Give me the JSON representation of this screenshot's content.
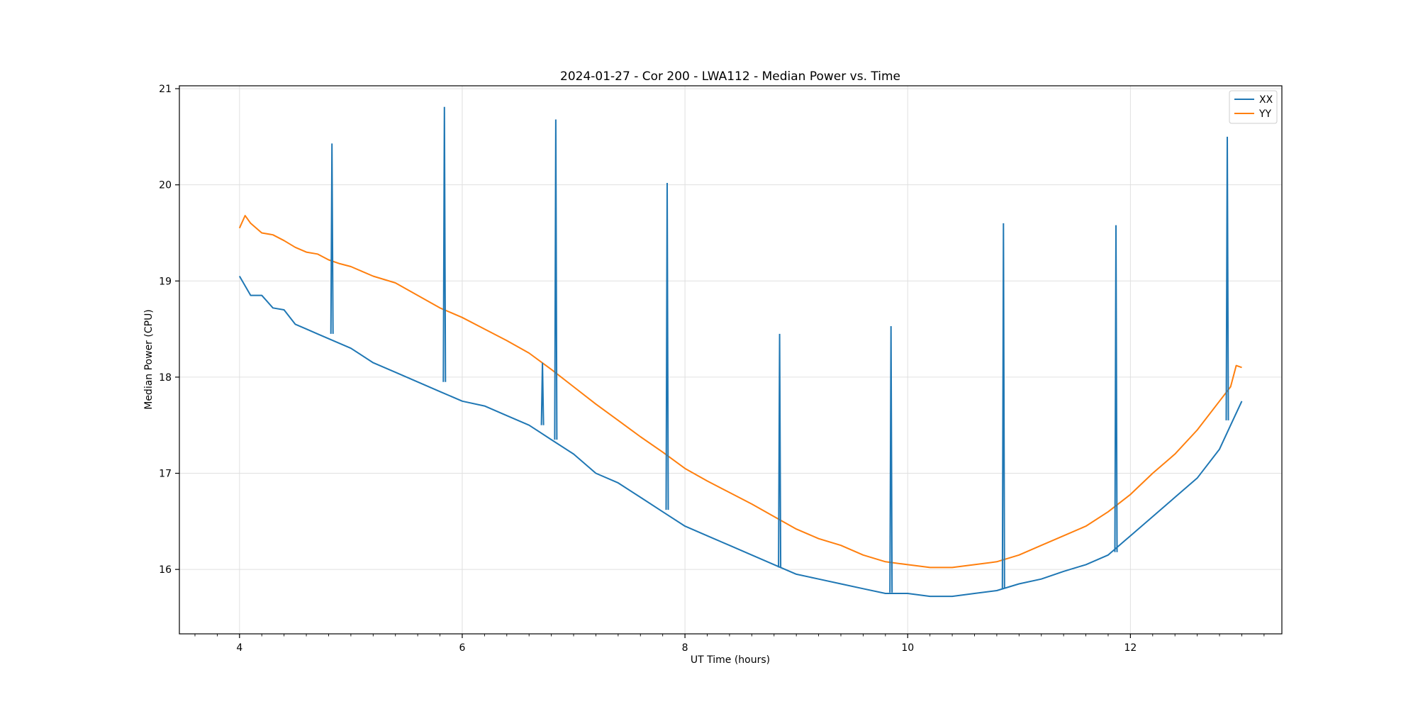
{
  "chart_data": {
    "type": "line",
    "title": "2024-01-27 - Cor 200 - LWA112 - Median Power vs. Time",
    "xlabel": "UT Time (hours)",
    "ylabel": "Median Power (CPU)",
    "xlim": [
      3.46,
      13.36
    ],
    "ylim": [
      15.33,
      21.03
    ],
    "x_ticks": [
      4,
      6,
      8,
      10,
      12
    ],
    "y_ticks": [
      16,
      17,
      18,
      19,
      20,
      21
    ],
    "x_minor_step": 0.2,
    "grid": true,
    "legend_position": "top-right",
    "series": [
      {
        "name": "XX",
        "color": "#1f77b4",
        "x": [
          4.0,
          4.1,
          4.2,
          4.3,
          4.4,
          4.5,
          4.6,
          4.7,
          4.8,
          4.9,
          5.0,
          5.2,
          5.4,
          5.6,
          5.8,
          6.0,
          6.2,
          6.4,
          6.6,
          6.8,
          7.0,
          7.2,
          7.4,
          7.6,
          7.8,
          8.0,
          8.2,
          8.4,
          8.6,
          8.8,
          9.0,
          9.2,
          9.4,
          9.6,
          9.8,
          10.0,
          10.2,
          10.4,
          10.6,
          10.8,
          11.0,
          11.2,
          11.4,
          11.6,
          11.8,
          11.9,
          12.0,
          12.2,
          12.4,
          12.6,
          12.8,
          12.9,
          13.0
        ],
        "y": [
          19.05,
          18.85,
          18.85,
          18.72,
          18.7,
          18.55,
          18.5,
          18.45,
          18.4,
          18.35,
          18.3,
          18.15,
          18.05,
          17.95,
          17.85,
          17.75,
          17.7,
          17.6,
          17.5,
          17.35,
          17.2,
          17.0,
          16.9,
          16.75,
          16.6,
          16.45,
          16.35,
          16.25,
          16.15,
          16.05,
          15.95,
          15.9,
          15.85,
          15.8,
          15.75,
          15.75,
          15.72,
          15.72,
          15.75,
          15.78,
          15.85,
          15.9,
          15.98,
          16.05,
          16.15,
          16.25,
          16.35,
          16.55,
          16.75,
          16.95,
          17.25,
          17.5,
          17.75
        ]
      },
      {
        "name": "YY",
        "color": "#ff7f0e",
        "x": [
          4.0,
          4.05,
          4.1,
          4.2,
          4.3,
          4.4,
          4.5,
          4.6,
          4.7,
          4.8,
          4.9,
          5.0,
          5.2,
          5.4,
          5.6,
          5.8,
          6.0,
          6.2,
          6.4,
          6.6,
          6.8,
          7.0,
          7.2,
          7.4,
          7.6,
          7.8,
          8.0,
          8.2,
          8.4,
          8.6,
          8.8,
          9.0,
          9.2,
          9.4,
          9.6,
          9.8,
          10.0,
          10.2,
          10.4,
          10.6,
          10.8,
          11.0,
          11.2,
          11.4,
          11.6,
          11.8,
          12.0,
          12.2,
          12.4,
          12.6,
          12.8,
          12.9,
          12.95,
          13.0
        ],
        "y": [
          19.55,
          19.68,
          19.6,
          19.5,
          19.48,
          19.42,
          19.35,
          19.3,
          19.28,
          19.22,
          19.18,
          19.15,
          19.05,
          18.98,
          18.85,
          18.72,
          18.62,
          18.5,
          18.38,
          18.25,
          18.08,
          17.9,
          17.72,
          17.55,
          17.38,
          17.22,
          17.05,
          16.92,
          16.8,
          16.68,
          16.55,
          16.42,
          16.32,
          16.25,
          16.15,
          16.08,
          16.05,
          16.02,
          16.02,
          16.05,
          16.08,
          16.15,
          16.25,
          16.35,
          16.45,
          16.6,
          16.78,
          17.0,
          17.2,
          17.45,
          17.75,
          17.9,
          18.12,
          18.1
        ]
      }
    ],
    "spikes": [
      {
        "series": "XX",
        "x": 4.83,
        "base": 18.45,
        "peak": 20.43
      },
      {
        "series": "XX",
        "x": 5.84,
        "base": 17.95,
        "peak": 20.81
      },
      {
        "series": "XX",
        "x": 6.84,
        "base": 17.35,
        "peak": 20.68
      },
      {
        "series": "XX",
        "x": 7.84,
        "base": 16.62,
        "peak": 20.02
      },
      {
        "series": "XX",
        "x": 8.85,
        "base": 16.02,
        "peak": 18.45
      },
      {
        "series": "XX",
        "x": 9.85,
        "base": 15.76,
        "peak": 18.53
      },
      {
        "series": "XX",
        "x": 10.86,
        "base": 15.8,
        "peak": 19.6
      },
      {
        "series": "XX",
        "x": 11.87,
        "base": 16.18,
        "peak": 19.58
      },
      {
        "series": "XX",
        "x": 12.87,
        "base": 17.55,
        "peak": 20.5
      },
      {
        "series": "XX",
        "x": 6.72,
        "base": 17.5,
        "peak": 18.15
      }
    ]
  }
}
